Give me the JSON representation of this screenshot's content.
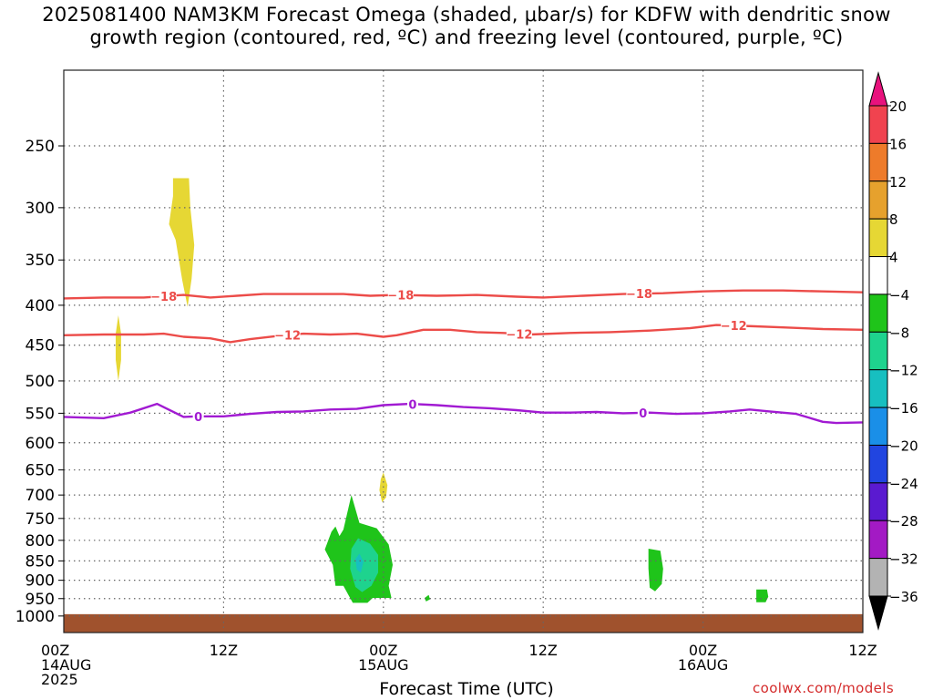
{
  "title": {
    "line1": "2025081400 NAM3KM Forecast Omega (shaded, μbar/s) for KDFW with dendritic snow",
    "line2": "growth region (contoured, red, ºC) and freezing level (contoured, purple, ºC)"
  },
  "watermark": "coolwx.com/models",
  "chart_data": {
    "type": "heatmap",
    "title": "2025081400 NAM3KM Forecast Omega (shaded, μbar/s) for KDFW with dendritic snow growth region (contoured, red, ºC) and freezing level (contoured, purple, ºC)",
    "xlabel": "Forecast Time (UTC)",
    "ylabel": "",
    "x_unit": "hours since 2025-08-14 00Z",
    "xlim": [
      0,
      60
    ],
    "ylim_hPa": [
      1050,
      200
    ],
    "y_scale": "log-pressure",
    "grid": true,
    "x_ticks": [
      {
        "x": 0,
        "lines": [
          "00Z",
          "14AUG",
          "2025"
        ]
      },
      {
        "x": 12,
        "lines": [
          "12Z"
        ]
      },
      {
        "x": 24,
        "lines": [
          "00Z",
          "15AUG"
        ]
      },
      {
        "x": 36,
        "lines": [
          "12Z"
        ]
      },
      {
        "x": 48,
        "lines": [
          "00Z",
          "16AUG"
        ]
      },
      {
        "x": 60,
        "lines": [
          "12Z"
        ]
      }
    ],
    "y_ticks": [
      1000,
      950,
      900,
      850,
      800,
      750,
      700,
      650,
      600,
      550,
      500,
      450,
      400,
      350,
      300,
      250
    ],
    "colorbar": {
      "label_values": [
        20,
        16,
        12,
        8,
        4,
        -4,
        -8,
        -12,
        -16,
        -20,
        -24,
        -28,
        -32,
        -36
      ],
      "bins": [
        {
          "range": [
            20,
            null
          ],
          "color": "#e8127d"
        },
        {
          "range": [
            16,
            20
          ],
          "color": "#f0434f"
        },
        {
          "range": [
            12,
            16
          ],
          "color": "#ee7b2a"
        },
        {
          "range": [
            8,
            12
          ],
          "color": "#e6a12d"
        },
        {
          "range": [
            4,
            8
          ],
          "color": "#e6d734"
        },
        {
          "range": [
            -4,
            4
          ],
          "color": "#ffffff"
        },
        {
          "range": [
            -8,
            -4
          ],
          "color": "#1fc41a"
        },
        {
          "range": [
            -12,
            -8
          ],
          "color": "#1ed38e"
        },
        {
          "range": [
            -16,
            -12
          ],
          "color": "#17bfc0"
        },
        {
          "range": [
            -20,
            -16
          ],
          "color": "#1a8fe8"
        },
        {
          "range": [
            -24,
            -20
          ],
          "color": "#2145e0"
        },
        {
          "range": [
            -28,
            -24
          ],
          "color": "#5a1ad0"
        },
        {
          "range": [
            -32,
            -28
          ],
          "color": "#a31ac4"
        },
        {
          "range": [
            -36,
            -32
          ],
          "color": "#b3b3b3"
        },
        {
          "range": [
            null,
            -36
          ],
          "color": "#000000"
        }
      ]
    },
    "omega_regions": [
      {
        "bin": "4 to 8",
        "color": "#e6d734",
        "points": [
          [
            8.2,
            275
          ],
          [
            9.4,
            275
          ],
          [
            9.5,
            300
          ],
          [
            9.8,
            335
          ],
          [
            9.6,
            370
          ],
          [
            9.3,
            402
          ],
          [
            8.9,
            372
          ],
          [
            8.4,
            330
          ],
          [
            7.9,
            315
          ],
          [
            8.2,
            290
          ]
        ]
      },
      {
        "bin": "4 to 8",
        "color": "#e6d734",
        "points": [
          [
            4.1,
            412
          ],
          [
            4.3,
            435
          ],
          [
            4.3,
            470
          ],
          [
            4.1,
            500
          ],
          [
            3.9,
            470
          ],
          [
            3.9,
            435
          ]
        ]
      },
      {
        "bin": "4 to 8",
        "color": "#e6d734",
        "points": [
          [
            24.0,
            655
          ],
          [
            24.3,
            680
          ],
          [
            24.2,
            705
          ],
          [
            23.9,
            715
          ],
          [
            23.7,
            690
          ],
          [
            23.8,
            668
          ]
        ]
      },
      {
        "bin": "-8 to -4",
        "color": "#1fc41a",
        "points": [
          [
            21.6,
            700
          ],
          [
            22.2,
            760
          ],
          [
            23.5,
            772
          ],
          [
            24.4,
            810
          ],
          [
            24.7,
            860
          ],
          [
            24.4,
            915
          ],
          [
            24.6,
            948
          ],
          [
            23.2,
            948
          ],
          [
            22.8,
            962
          ],
          [
            21.7,
            962
          ],
          [
            21.0,
            915
          ],
          [
            20.4,
            915
          ],
          [
            20.2,
            860
          ],
          [
            19.6,
            822
          ],
          [
            20.1,
            780
          ],
          [
            20.4,
            768
          ],
          [
            20.7,
            790
          ],
          [
            21.0,
            775
          ]
        ]
      },
      {
        "bin": "-12 to -8",
        "color": "#1ed38e",
        "points": [
          [
            21.6,
            820
          ],
          [
            22.1,
            795
          ],
          [
            23.0,
            808
          ],
          [
            23.6,
            835
          ],
          [
            23.6,
            880
          ],
          [
            23.1,
            915
          ],
          [
            22.4,
            932
          ],
          [
            21.9,
            918
          ],
          [
            21.5,
            870
          ]
        ]
      },
      {
        "bin": "-16 to -12",
        "color": "#17bfc0",
        "points": [
          [
            21.9,
            845
          ],
          [
            22.2,
            832
          ],
          [
            22.5,
            852
          ],
          [
            22.3,
            880
          ],
          [
            22.0,
            872
          ]
        ]
      },
      {
        "bin": "-8 to -4",
        "color": "#1fc41a",
        "points": [
          [
            27.1,
            948
          ],
          [
            27.4,
            940
          ],
          [
            27.5,
            952
          ],
          [
            27.2,
            958
          ]
        ]
      },
      {
        "bin": "-8 to -4",
        "color": "#1fc41a",
        "points": [
          [
            43.9,
            820
          ],
          [
            44.8,
            825
          ],
          [
            45.0,
            870
          ],
          [
            44.9,
            910
          ],
          [
            44.4,
            930
          ],
          [
            44.0,
            920
          ],
          [
            43.9,
            870
          ]
        ]
      },
      {
        "bin": "-8 to -4",
        "color": "#1fc41a",
        "points": [
          [
            52.0,
            925
          ],
          [
            52.8,
            925
          ],
          [
            52.9,
            945
          ],
          [
            52.7,
            960
          ],
          [
            52.0,
            960
          ]
        ]
      }
    ],
    "surface_fill": {
      "color": "#a0522d",
      "top_hPa": 1000
    },
    "contours": [
      {
        "level": -18,
        "kind": "dendritic growth",
        "color": "#ec4c49",
        "x": [
          0,
          3,
          6,
          9,
          11,
          13,
          15,
          18,
          21,
          23,
          25,
          28,
          31,
          34,
          36,
          39,
          42,
          45,
          48,
          51,
          54,
          57,
          60
        ],
        "y_hPa": [
          392,
          391,
          391,
          388,
          391,
          389,
          387,
          387,
          387,
          389,
          388,
          389,
          388,
          390,
          391,
          389,
          387,
          386,
          384,
          383,
          383,
          384,
          385
        ],
        "labels_x": [
          7.5,
          25.3,
          43.2
        ]
      },
      {
        "level": -12,
        "kind": "dendritic growth",
        "color": "#ec4c49",
        "x": [
          0,
          3,
          6,
          7.5,
          9,
          11,
          12.5,
          14,
          16,
          18,
          20,
          22,
          24,
          25,
          27,
          29,
          31,
          33,
          35,
          38,
          41,
          44,
          47,
          49,
          51,
          54,
          57,
          60
        ],
        "y_hPa": [
          437,
          436,
          436,
          435,
          439,
          441,
          446,
          442,
          438,
          435,
          436,
          435,
          439,
          437,
          430,
          430,
          433,
          434,
          436,
          434,
          433,
          431,
          428,
          424,
          425,
          427,
          429,
          430
        ],
        "labels_x": [
          16.8,
          34.2,
          50.3
        ]
      },
      {
        "level": 0,
        "kind": "freezing level",
        "color": "#a11ad2",
        "x": [
          0,
          3,
          5,
          7,
          9,
          10,
          12,
          14,
          16,
          18,
          20,
          22,
          24,
          26,
          28,
          30,
          32,
          34,
          36,
          38,
          40,
          42,
          44,
          46,
          48,
          50,
          51.5,
          53,
          55,
          57,
          58,
          60
        ],
        "y_hPa": [
          556,
          558,
          549,
          535,
          556,
          555,
          555,
          551,
          548,
          547,
          544,
          543,
          537,
          535,
          537,
          540,
          542,
          545,
          549,
          549,
          548,
          550,
          549,
          551,
          550,
          547,
          544,
          547,
          551,
          564,
          566,
          565
        ],
        "labels_x": [
          10.1,
          26.2,
          43.5
        ]
      }
    ]
  }
}
